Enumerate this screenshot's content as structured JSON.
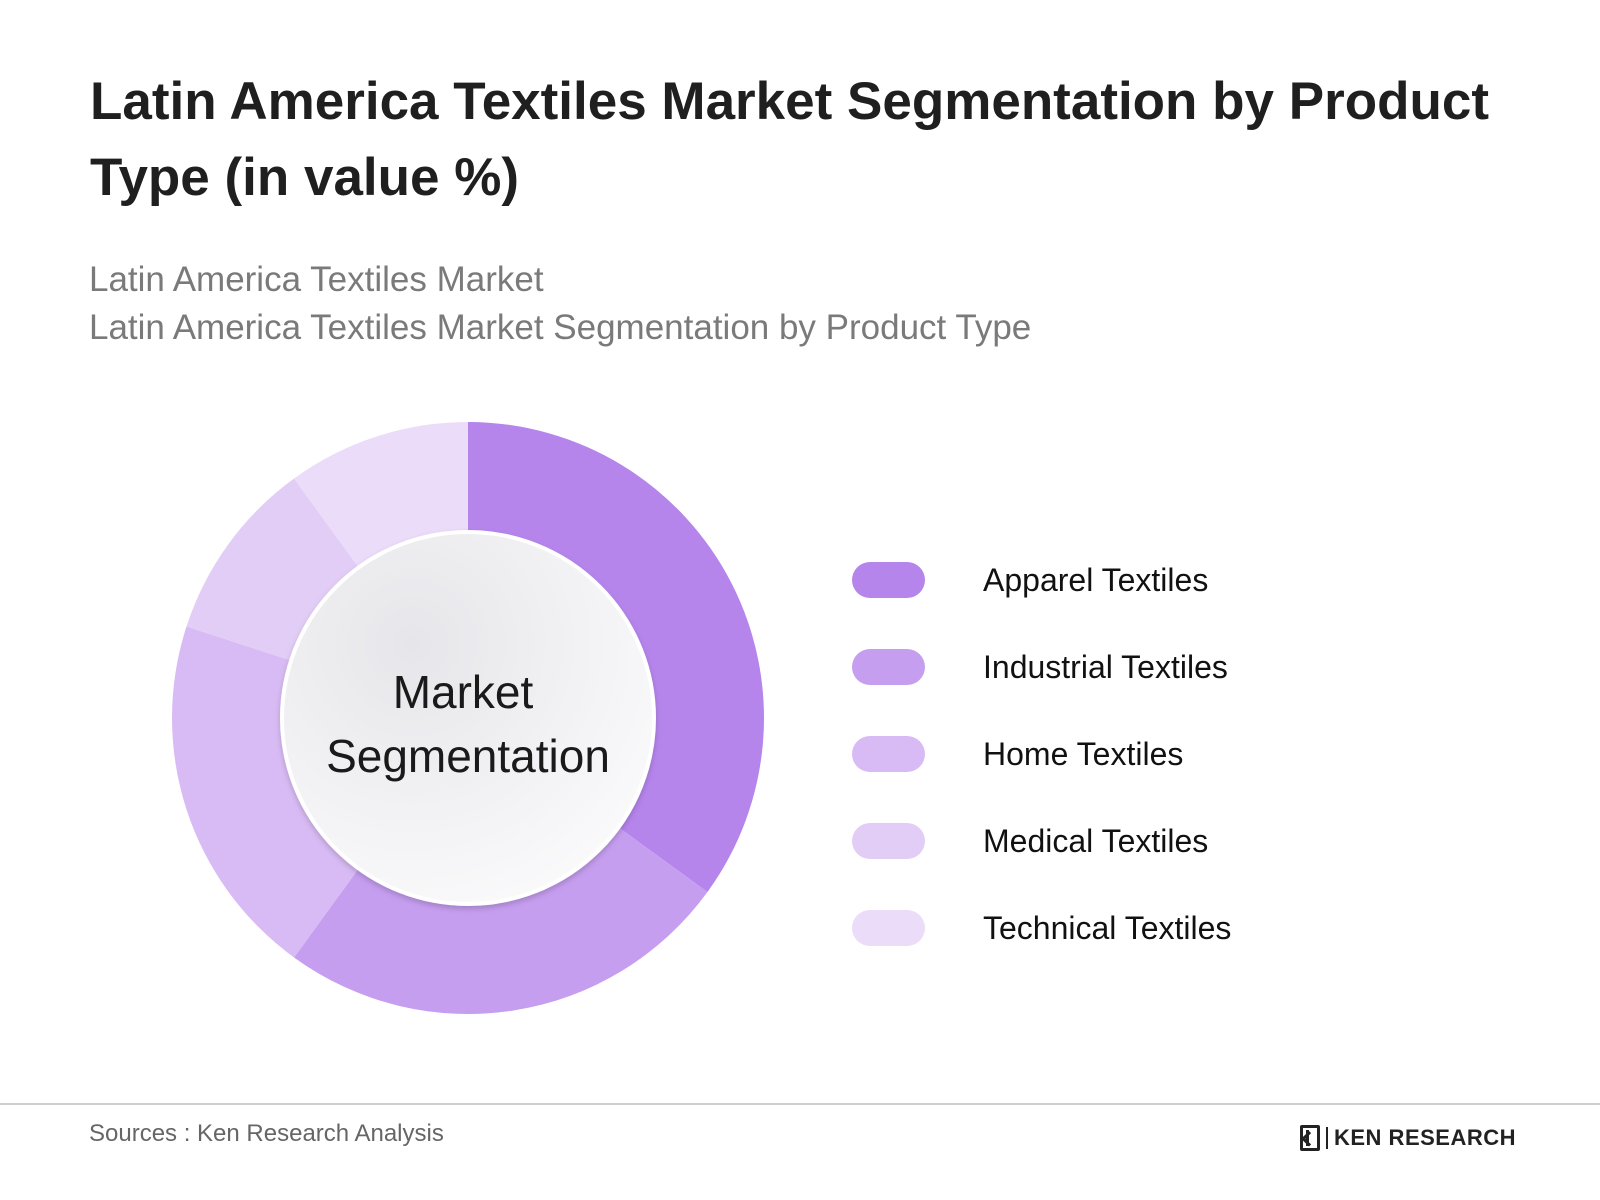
{
  "header": {
    "title": "Latin America Textiles Market Segmentation by Product Type (in value %)",
    "subtitle_line1": "Latin America Textiles Market",
    "subtitle_line2": "Latin America Textiles Market Segmentation by Product Type"
  },
  "chart_data": {
    "type": "pie",
    "title": "Latin America Textiles Market Segmentation by Product Type (in value %)",
    "center_label": [
      "Market",
      "Segmentation"
    ],
    "categories": [
      "Apparel Textiles",
      "Industrial Textiles",
      "Home Textiles",
      "Medical Textiles",
      "Technical Textiles"
    ],
    "values": [
      35,
      25,
      20,
      10,
      10
    ],
    "colors": [
      "#b585ec",
      "#c69ef0",
      "#d8bbf4",
      "#e2cdf6",
      "#ebdcf9"
    ],
    "legend_position": "right"
  },
  "footer": {
    "source": "Sources : Ken Research Analysis",
    "brand": "KEN RESEARCH"
  }
}
